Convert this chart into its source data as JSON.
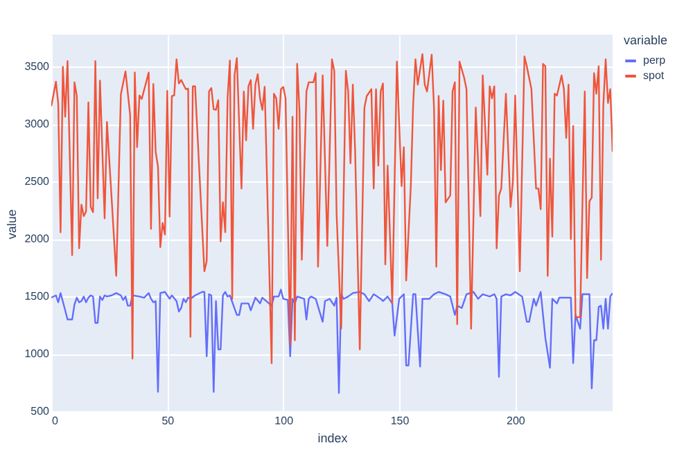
{
  "chart_data": {
    "type": "line",
    "xlabel": "index",
    "ylabel": "value",
    "legend_title": "variable",
    "legend": "right",
    "grid": true,
    "xlim": [
      0,
      242
    ],
    "xticks": [
      0,
      50,
      100,
      150,
      200
    ],
    "ylim": [
      490,
      3780
    ],
    "yticks": [
      500,
      1000,
      1500,
      2000,
      2500,
      3000,
      3500
    ],
    "series": [
      {
        "name": "perp",
        "color": "#636efa",
        "x": [
          0,
          2,
          3,
          4,
          6,
          7,
          9,
          10,
          11,
          12,
          13,
          14,
          15,
          16,
          17,
          18,
          19,
          20,
          21,
          22,
          23,
          24,
          26,
          28,
          30,
          31,
          32,
          33,
          34,
          35,
          38,
          40,
          42,
          43,
          44,
          45,
          46,
          47,
          49,
          51,
          52,
          54,
          55,
          56,
          57,
          58,
          59,
          60,
          62,
          65,
          66,
          67,
          68,
          69,
          70,
          71,
          72,
          73,
          74,
          75,
          76,
          77,
          80,
          81,
          82,
          85,
          86,
          88,
          90,
          91,
          95,
          96,
          98,
          99,
          100,
          102,
          103,
          104,
          105,
          106,
          109,
          110,
          111,
          112,
          114,
          117,
          118,
          120,
          122,
          123,
          124,
          125,
          126,
          128,
          130,
          133,
          135,
          137,
          139,
          142,
          143,
          145,
          147,
          148,
          150,
          152,
          153,
          154,
          156,
          157,
          159,
          160,
          163,
          165,
          167,
          170,
          172,
          174,
          175,
          177,
          179,
          182,
          184,
          186,
          189,
          191,
          192,
          193,
          194,
          196,
          198,
          200,
          203,
          205,
          206,
          208,
          209,
          211,
          213,
          215,
          216,
          218,
          219,
          224,
          225,
          226,
          228,
          229,
          232,
          233,
          234,
          235,
          236,
          237,
          238,
          239,
          240,
          241,
          242
        ],
        "values": [
          1490,
          1510,
          1450,
          1530,
          1380,
          1300,
          1300,
          1430,
          1490,
          1450,
          1460,
          1500,
          1450,
          1490,
          1510,
          1500,
          1270,
          1270,
          1500,
          1470,
          1510,
          1500,
          1510,
          1530,
          1510,
          1470,
          1500,
          1420,
          1420,
          1510,
          1500,
          1490,
          1530,
          1480,
          1450,
          1460,
          670,
          1530,
          1540,
          1480,
          1510,
          1460,
          1370,
          1400,
          1480,
          1450,
          1490,
          1480,
          1510,
          1540,
          1540,
          980,
          1520,
          1510,
          670,
          1460,
          1040,
          1040,
          1510,
          1540,
          1500,
          1510,
          1340,
          1340,
          1440,
          1440,
          1380,
          1490,
          1440,
          1490,
          1420,
          1500,
          1500,
          1560,
          1480,
          1470,
          980,
          1480,
          1440,
          1500,
          1480,
          1300,
          1480,
          1500,
          1480,
          1280,
          1460,
          1480,
          1420,
          1490,
          660,
          1520,
          1480,
          1500,
          1530,
          1540,
          1520,
          1460,
          1520,
          1480,
          1460,
          1500,
          1440,
          1160,
          1480,
          1520,
          900,
          900,
          1520,
          1520,
          890,
          1480,
          1480,
          1520,
          1540,
          1520,
          1500,
          1340,
          1420,
          1400,
          1520,
          1540,
          1480,
          1520,
          1500,
          1520,
          1480,
          800,
          1500,
          1520,
          1510,
          1540,
          1500,
          1280,
          1280,
          1480,
          1420,
          1540,
          1140,
          880,
          1480,
          1440,
          1490,
          1490,
          920,
          1340,
          1220,
          1520,
          1520,
          700,
          1120,
          1120,
          1410,
          1420,
          1220,
          1480,
          1220,
          1500,
          1530
        ]
      },
      {
        "name": "spot",
        "color": "#ef553b",
        "x": [
          0,
          2,
          3,
          4,
          5,
          6,
          7,
          9,
          10,
          11,
          12,
          13,
          14,
          15,
          16,
          17,
          18,
          19,
          20,
          21,
          23,
          24,
          26,
          28,
          30,
          32,
          34,
          35,
          36,
          37,
          38,
          39,
          42,
          43,
          44,
          45,
          46,
          47,
          48,
          49,
          50,
          51,
          52,
          53,
          54,
          55,
          56,
          58,
          59,
          60,
          61,
          62,
          66,
          67,
          68,
          69,
          70,
          71,
          72,
          73,
          74,
          75,
          76,
          77,
          78,
          79,
          80,
          82,
          83,
          84,
          85,
          86,
          87,
          88,
          89,
          90,
          91,
          92,
          95,
          96,
          97,
          98,
          99,
          100,
          101,
          103,
          104,
          105,
          106,
          107,
          108,
          110,
          111,
          113,
          114,
          115,
          117,
          119,
          121,
          122,
          123,
          125,
          127,
          128,
          129,
          130,
          131,
          133,
          135,
          136,
          138,
          139,
          140,
          141,
          142,
          143,
          144,
          145,
          147,
          149,
          151,
          152,
          153,
          155,
          156,
          157,
          158,
          160,
          161,
          162,
          164,
          165,
          166,
          167,
          168,
          169,
          170,
          172,
          173,
          174,
          175,
          176,
          178,
          179,
          181,
          183,
          185,
          186,
          188,
          189,
          190,
          191,
          192,
          193,
          194,
          196,
          198,
          199,
          200,
          202,
          204,
          205,
          207,
          209,
          210,
          211,
          212,
          213,
          214,
          215,
          216,
          217,
          218,
          220,
          221,
          222,
          223,
          224,
          225,
          226,
          228,
          230,
          231,
          232,
          233,
          234,
          235,
          236,
          237,
          238,
          239,
          240,
          241,
          242
        ],
        "values": [
          3156,
          3370,
          3180,
          2060,
          3500,
          3065,
          3550,
          1860,
          3365,
          3245,
          1920,
          2300,
          2200,
          2240,
          3190,
          2280,
          2235,
          3550,
          2355,
          3380,
          2180,
          3020,
          2360,
          1680,
          3260,
          3460,
          3080,
          960,
          3450,
          2800,
          3250,
          3220,
          3450,
          2090,
          3350,
          2760,
          2630,
          1930,
          2140,
          2040,
          3290,
          2195,
          3245,
          3250,
          3565,
          3355,
          3385,
          3305,
          3310,
          1150,
          3330,
          3330,
          1720,
          1810,
          3285,
          3315,
          3130,
          3125,
          3210,
          1980,
          2320,
          2060,
          3225,
          3555,
          1480,
          3425,
          3575,
          2440,
          3285,
          2860,
          3330,
          3385,
          2960,
          3345,
          3435,
          3225,
          3125,
          3325,
          920,
          3265,
          3225,
          2960,
          3305,
          3325,
          3225,
          1080,
          3065,
          1120,
          3525,
          3125,
          1820,
          3285,
          3365,
          3365,
          3445,
          1760,
          3425,
          1940,
          3565,
          3465,
          2220,
          1220,
          3465,
          3285,
          2660,
          3345,
          2760,
          1040,
          3145,
          3245,
          3305,
          2440,
          3305,
          2640,
          3285,
          3355,
          1780,
          2640,
          1440,
          3545,
          2460,
          2800,
          1640,
          2460,
          3165,
          3565,
          3345,
          3610,
          3345,
          3285,
          3605,
          3145,
          1760,
          3245,
          2600,
          3205,
          2320,
          2380,
          3285,
          3365,
          1260,
          3545,
          3405,
          3305,
          1220,
          3145,
          2200,
          3425,
          2560,
          3330,
          3225,
          3330,
          1920,
          2380,
          2440,
          3265,
          2280,
          2500,
          3250,
          1720,
          3590,
          3505,
          3305,
          2440,
          2440,
          2260,
          3525,
          3505,
          1680,
          2700,
          2020,
          3265,
          3250,
          3425,
          3305,
          2880,
          3345,
          2000,
          2985,
          1320,
          1320,
          3285,
          1660,
          2330,
          2360,
          3445,
          3265,
          3505,
          1820,
          3165,
          3565,
          3185,
          3305,
          2760
        ]
      }
    ]
  }
}
